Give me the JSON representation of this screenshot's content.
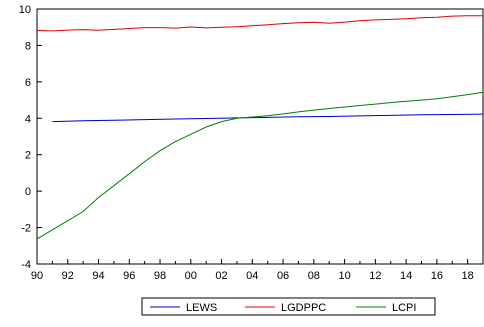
{
  "chart_data": {
    "type": "line",
    "x_tick_labels": [
      "90",
      "92",
      "94",
      "96",
      "98",
      "00",
      "02",
      "04",
      "06",
      "08",
      "10",
      "12",
      "14",
      "16",
      "18"
    ],
    "x_range": [
      1990,
      2019
    ],
    "y_ticks": [
      -4,
      -2,
      0,
      2,
      4,
      6,
      8,
      10
    ],
    "ylim": [
      -4,
      10
    ],
    "grid": false,
    "legend_position": "bottom",
    "series": [
      {
        "name": "LEWS",
        "color": "#0000cc",
        "points": [
          [
            1991,
            3.82
          ],
          [
            1993,
            3.86
          ],
          [
            1995,
            3.89
          ],
          [
            1997,
            3.93
          ],
          [
            1999,
            3.96
          ],
          [
            2001,
            3.99
          ],
          [
            2003,
            4.02
          ],
          [
            2005,
            4.05
          ],
          [
            2007,
            4.08
          ],
          [
            2009,
            4.1
          ],
          [
            2011,
            4.13
          ],
          [
            2013,
            4.16
          ],
          [
            2015,
            4.19
          ],
          [
            2017,
            4.21
          ],
          [
            2019,
            4.23
          ]
        ]
      },
      {
        "name": "LGDPPC",
        "color": "#dd0000",
        "points": [
          [
            1990,
            8.82
          ],
          [
            1991,
            8.8
          ],
          [
            1992,
            8.84
          ],
          [
            1993,
            8.87
          ],
          [
            1994,
            8.83
          ],
          [
            1995,
            8.88
          ],
          [
            1996,
            8.93
          ],
          [
            1997,
            8.98
          ],
          [
            1998,
            8.98
          ],
          [
            1999,
            8.95
          ],
          [
            2000,
            9.01
          ],
          [
            2001,
            8.96
          ],
          [
            2002,
            9.0
          ],
          [
            2003,
            9.03
          ],
          [
            2004,
            9.08
          ],
          [
            2005,
            9.14
          ],
          [
            2006,
            9.2
          ],
          [
            2007,
            9.25
          ],
          [
            2008,
            9.27
          ],
          [
            2009,
            9.22
          ],
          [
            2010,
            9.28
          ],
          [
            2011,
            9.36
          ],
          [
            2012,
            9.4
          ],
          [
            2013,
            9.43
          ],
          [
            2014,
            9.47
          ],
          [
            2015,
            9.52
          ],
          [
            2016,
            9.55
          ],
          [
            2017,
            9.61
          ],
          [
            2018,
            9.63
          ],
          [
            2019,
            9.63
          ]
        ]
      },
      {
        "name": "LCPI",
        "color": "#008000",
        "points": [
          [
            1990,
            -2.62
          ],
          [
            1991,
            -2.12
          ],
          [
            1992,
            -1.62
          ],
          [
            1993,
            -1.12
          ],
          [
            1994,
            -0.35
          ],
          [
            1995,
            0.3
          ],
          [
            1996,
            0.95
          ],
          [
            1997,
            1.62
          ],
          [
            1998,
            2.22
          ],
          [
            1999,
            2.72
          ],
          [
            2000,
            3.12
          ],
          [
            2001,
            3.52
          ],
          [
            2002,
            3.82
          ],
          [
            2003,
            4.0
          ],
          [
            2004,
            4.07
          ],
          [
            2005,
            4.14
          ],
          [
            2006,
            4.24
          ],
          [
            2007,
            4.35
          ],
          [
            2008,
            4.45
          ],
          [
            2009,
            4.54
          ],
          [
            2010,
            4.62
          ],
          [
            2011,
            4.7
          ],
          [
            2012,
            4.78
          ],
          [
            2013,
            4.86
          ],
          [
            2014,
            4.93
          ],
          [
            2015,
            5.0
          ],
          [
            2016,
            5.07
          ],
          [
            2017,
            5.18
          ],
          [
            2018,
            5.3
          ],
          [
            2019,
            5.43
          ]
        ]
      }
    ]
  }
}
